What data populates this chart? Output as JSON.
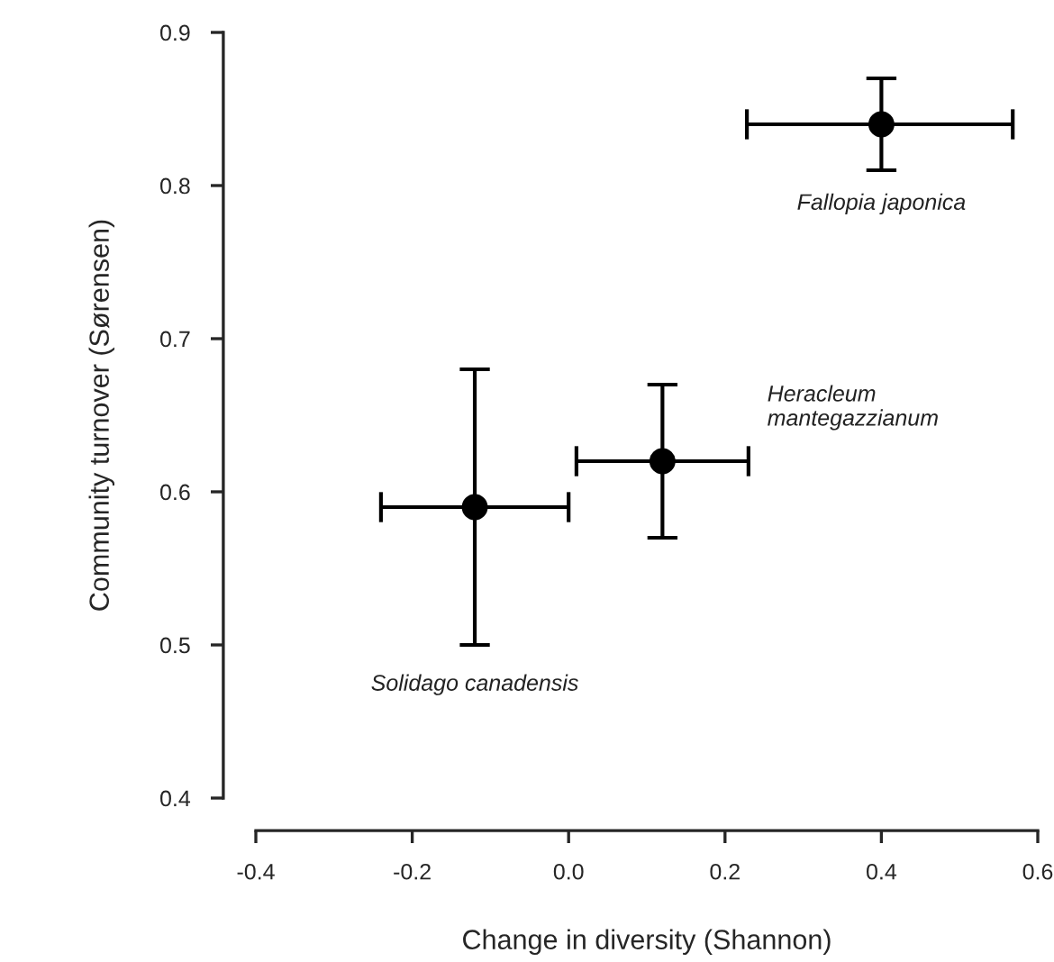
{
  "chart_data": {
    "type": "scatter",
    "xlabel": "Change in diversity (Shannon)",
    "ylabel": "Community turnover (Sørensen)",
    "series": [
      {
        "color": "#000000",
        "x": [
          0.4,
          0.12,
          -0.12
        ],
        "values": [
          0.84,
          0.62,
          0.59
        ],
        "errors": [
          [
            0.81,
            0.87
          ],
          [
            0.57,
            0.67
          ],
          [
            0.5,
            0.68
          ]
        ],
        "xerrors": [
          [
            0.228,
            0.568
          ],
          [
            0.01,
            0.23
          ],
          [
            -0.24,
            0.0
          ]
        ]
      }
    ],
    "annotations": [
      "Fallopia japonica",
      "Heracleum\nmantegazzianum",
      "Solidago canadensis"
    ],
    "xlim": [
      -0.4,
      0.6
    ],
    "ylim": [
      0.4,
      0.9
    ],
    "xticks": [
      {
        "value": -0.4,
        "label": "-0.4"
      },
      {
        "value": -0.2,
        "label": "-0.2"
      },
      {
        "value": 0.0,
        "label": "0.0"
      },
      {
        "value": 0.2,
        "label": "0.2"
      },
      {
        "value": 0.4,
        "label": "0.4"
      },
      {
        "value": 0.6,
        "label": "0.6"
      }
    ],
    "yticks": [
      0.4,
      0.5,
      0.6,
      0.7,
      0.8,
      0.9
    ],
    "marker": "circle",
    "grid": false,
    "legend": false
  }
}
